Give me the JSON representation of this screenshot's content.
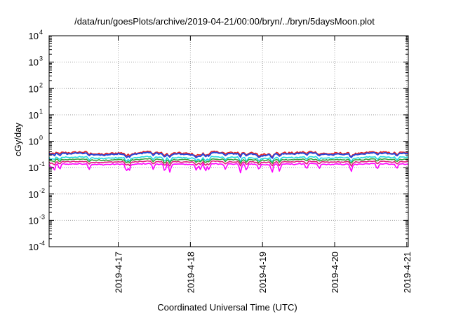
{
  "chart_data": {
    "type": "line",
    "title": "/data/run/goesPlots/archive/2019-04-21/00:00/bryn/../bryn/5daysMoon.plot",
    "xlabel": "Coordinated Universal Time (UTC)",
    "ylabel": "cGy/day",
    "y_scale": "log",
    "ylim": [
      0.0001,
      10000
    ],
    "y_ticks": [
      {
        "base": "10",
        "exp": "-4",
        "value": 0.0001
      },
      {
        "base": "10",
        "exp": "-3",
        "value": 0.001
      },
      {
        "base": "10",
        "exp": "-2",
        "value": 0.01
      },
      {
        "base": "10",
        "exp": "-1",
        "value": 0.1
      },
      {
        "base": "10",
        "exp": "0",
        "value": 1
      },
      {
        "base": "10",
        "exp": "1",
        "value": 10
      },
      {
        "base": "10",
        "exp": "2",
        "value": 100
      },
      {
        "base": "10",
        "exp": "3",
        "value": 1000
      },
      {
        "base": "10",
        "exp": "4",
        "value": 10000
      }
    ],
    "xlim": [
      "2019-04-16 01:00",
      "2019-04-21 00:30"
    ],
    "x_ticks": [
      "2019-4-17",
      "2019-4-18",
      "2019-4-19",
      "2019-4-20",
      "2019-4-21"
    ],
    "grid": true,
    "legend": "none",
    "series": [
      {
        "color": "#e8211f",
        "level": 0.36,
        "variation": 0.14,
        "dip_strength": 0.25
      },
      {
        "color": "#2946d8",
        "level": 0.33,
        "variation": 0.14,
        "dip_strength": 0.3
      },
      {
        "color": "#22d8e0",
        "level": 0.24,
        "variation": 0.1,
        "dip_strength": 0.35
      },
      {
        "color": "#3aa03a",
        "level": 0.2,
        "variation": 0.07,
        "dip_strength": 0.3
      },
      {
        "color": "#e01b7a",
        "level": 0.165,
        "variation": 0.06,
        "dip_strength": 0.35
      },
      {
        "color": "#ff00ff",
        "level": 0.135,
        "variation": 0.05,
        "dip_strength": 0.6
      }
    ],
    "dips": [
      "2019-04-16 01:40",
      "2019-04-16 02:40",
      "2019-04-16 04:30",
      "2019-04-16 14:20",
      "2019-04-17 02:40",
      "2019-04-17 03:40",
      "2019-04-17 11:40",
      "2019-04-17 15:30",
      "2019-04-17 17:10",
      "2019-04-18 02:00",
      "2019-04-18 03:20",
      "2019-04-18 05:00",
      "2019-04-18 06:10",
      "2019-04-18 11:40",
      "2019-04-18 16:40",
      "2019-04-18 18:40",
      "2019-04-18 22:50",
      "2019-04-19 03:10",
      "2019-04-19 05:40",
      "2019-04-19 14:40",
      "2019-04-19 18:50",
      "2019-04-20 05:30",
      "2019-04-20 14:10",
      "2019-04-20 20:40"
    ]
  }
}
